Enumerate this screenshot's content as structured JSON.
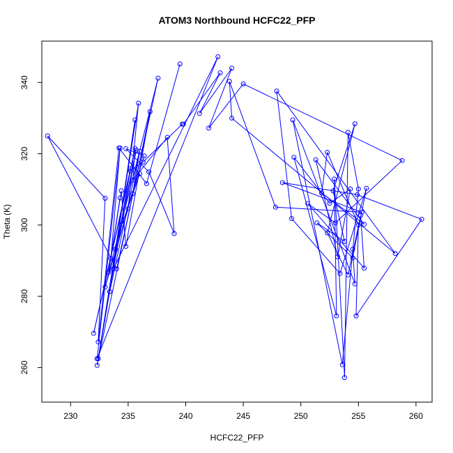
{
  "chart_data": {
    "type": "line",
    "title": "ATOM3 Northbound HCFC22_PFP",
    "xlabel": "HCFC22_PFP",
    "ylabel": "Theta (K)",
    "xlim": [
      227.5,
      261.4
    ],
    "ylim": [
      250.3,
      351.6
    ],
    "x_ticks": [
      230,
      235,
      240,
      245,
      250,
      255,
      260
    ],
    "y_ticks": [
      260,
      280,
      300,
      320,
      340
    ],
    "grid": false,
    "legend": "none",
    "series_color": "#0000ff",
    "markers": "open-circle",
    "series": [
      {
        "values": [
          [
            239.5,
            345.2
          ],
          [
            236.6,
            311.6
          ],
          [
            234.2,
            321.6
          ],
          [
            232.4,
            267.2
          ],
          [
            233.0,
            307.5
          ],
          [
            228.0,
            325.0
          ],
          [
            234.0,
            287.7
          ],
          [
            237.6,
            341.2
          ],
          [
            233.0,
            282.6
          ],
          [
            235.0,
            304.6
          ],
          [
            235.9,
            334.2
          ],
          [
            232.4,
            262.5
          ],
          [
            235.2,
            315.8
          ],
          [
            232.3,
            260.6
          ],
          [
            236.9,
            331.8
          ],
          [
            234.8,
            294.0
          ],
          [
            234.4,
            309.6
          ],
          [
            233.3,
            286.8
          ],
          [
            234.3,
            307.6
          ],
          [
            233.5,
            290.6
          ],
          [
            234.3,
            321.6
          ],
          [
            232.3,
            262.5
          ],
          [
            242.8,
            347.2
          ],
          [
            233.7,
            287.6
          ],
          [
            235.7,
            321.0
          ],
          [
            233.9,
            293.2
          ],
          [
            235.6,
            329.5
          ],
          [
            233.4,
            281.3
          ],
          [
            236.0,
            320.7
          ],
          [
            235.4,
            308.8
          ],
          [
            236.0,
            314.4
          ],
          [
            234.5,
            300.3
          ],
          [
            236.4,
            319.4
          ],
          [
            234.8,
            321.4
          ],
          [
            236.8,
            314.9
          ],
          [
            239.0,
            297.6
          ],
          [
            238.4,
            324.6
          ],
          [
            235.4,
            312.6
          ],
          [
            235.6,
            321.5
          ],
          [
            232.0,
            269.6
          ],
          [
            235.2,
            315.2
          ],
          [
            236.3,
            317.7
          ],
          [
            239.7,
            328.3
          ],
          [
            239.8,
            328.3
          ],
          [
            243.0,
            342.7
          ],
          [
            241.2,
            331.3
          ],
          [
            244.0,
            344.0
          ],
          [
            242.0,
            327.2
          ],
          [
            245.0,
            339.6
          ],
          [
            258.8,
            318.1
          ],
          [
            253.0,
            300.6
          ],
          [
            250.6,
            306.0
          ],
          [
            255.5,
            287.9
          ],
          [
            255.2,
            302.7
          ],
          [
            254.1,
            286.0
          ],
          [
            252.3,
            297.8
          ],
          [
            254.7,
            328.4
          ],
          [
            252.8,
            309.6
          ],
          [
            253.8,
            295.4
          ],
          [
            251.4,
            300.6
          ],
          [
            254.5,
            290.8
          ],
          [
            255.7,
            310.3
          ],
          [
            253.4,
            286.4
          ],
          [
            249.2,
            301.8
          ],
          [
            247.9,
            337.6
          ],
          [
            258.2,
            292.0
          ],
          [
            244.0,
            330.0
          ],
          [
            243.8,
            340.3
          ],
          [
            247.8,
            305.0
          ],
          [
            255.3,
            303.6
          ],
          [
            248.4,
            311.9
          ],
          [
            254.9,
            308.5
          ],
          [
            260.5,
            301.6
          ],
          [
            254.8,
            274.5
          ],
          [
            255.0,
            300.0
          ],
          [
            252.3,
            320.4
          ],
          [
            251.8,
            309.0
          ],
          [
            255.5,
            300.2
          ],
          [
            251.3,
            318.3
          ],
          [
            253.2,
            291.1
          ],
          [
            254.3,
            310.1
          ],
          [
            252.5,
            306.1
          ],
          [
            249.4,
            319.0
          ],
          [
            253.1,
            274.5
          ],
          [
            252.9,
            312.9
          ],
          [
            253.8,
            257.2
          ],
          [
            254.1,
            326.0
          ],
          [
            255.0,
            310.1
          ],
          [
            253.6,
            260.8
          ],
          [
            249.3,
            329.5
          ],
          [
            254.7,
            283.5
          ],
          [
            254.5,
            293.2
          ]
        ]
      }
    ]
  }
}
